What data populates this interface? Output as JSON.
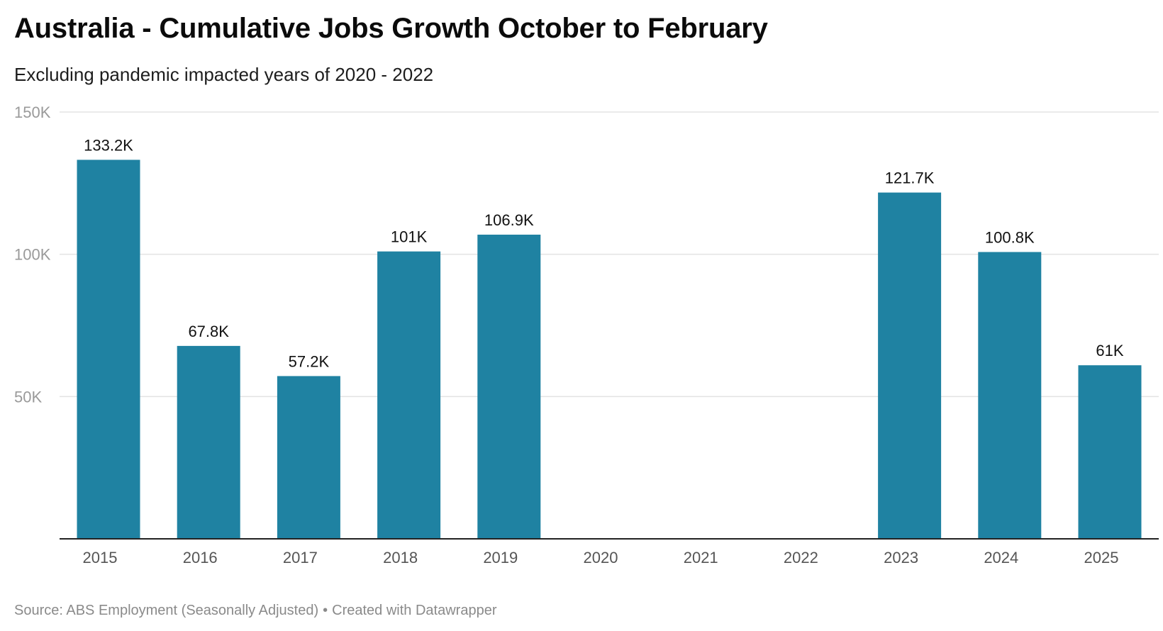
{
  "header": {
    "title": "Australia - Cumulative Jobs Growth October to February",
    "subtitle": "Excluding pandemic impacted years of 2020 - 2022"
  },
  "footer": {
    "source": "Source: ABS Employment (Seasonally Adjusted)",
    "separator": "•",
    "credit": "Created with Datawrapper"
  },
  "colors": {
    "bar": "#1f82a2",
    "grid": "#e3e3e3",
    "axis": "#222222",
    "tick_label": "#9a9a9a",
    "x_label": "#555555",
    "data_label": "#111111"
  },
  "chart_data": {
    "type": "bar",
    "title": "Australia - Cumulative Jobs Growth October to February",
    "subtitle": "Excluding pandemic impacted years of 2020 - 2022",
    "xlabel": "",
    "ylabel": "",
    "ylim": [
      0,
      150000
    ],
    "grid": true,
    "y_ticks": [
      {
        "value": 50000,
        "label": "50K"
      },
      {
        "value": 100000,
        "label": "100K"
      },
      {
        "value": 150000,
        "label": "150K"
      }
    ],
    "categories": [
      "2015",
      "2016",
      "2017",
      "2018",
      "2019",
      "2020",
      "2021",
      "2022",
      "2023",
      "2024",
      "2025"
    ],
    "values": [
      133200,
      67800,
      57200,
      101000,
      106900,
      null,
      null,
      null,
      121700,
      100800,
      61000
    ],
    "value_labels": [
      "133.2K",
      "67.8K",
      "57.2K",
      "101K",
      "106.9K",
      "",
      "",
      "",
      "121.7K",
      "100.8K",
      "61K"
    ]
  }
}
